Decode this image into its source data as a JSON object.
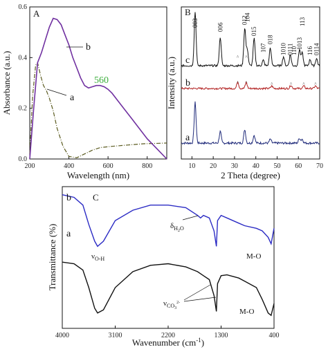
{
  "chart_data": [
    {
      "panel": "A",
      "type": "line",
      "xlabel": "Wavelength (nm)",
      "ylabel": "Absorbance (a.u.)",
      "xlim": [
        200,
        900
      ],
      "ylim": [
        0.0,
        0.6
      ],
      "xticks": [
        200,
        400,
        600,
        800
      ],
      "yticks": [
        0.0,
        0.2,
        0.4,
        0.6
      ],
      "colors": {
        "a": "#5a5a1e",
        "b": "#7030a0",
        "annotation": "#3cae3c"
      },
      "series": [
        {
          "name": "a",
          "style": "dash-dot",
          "x": [
            200,
            215,
            230,
            240,
            255,
            270,
            285,
            300,
            320,
            340,
            370,
            400,
            440,
            480,
            520,
            560,
            620,
            700,
            780,
            860,
            900
          ],
          "y": [
            0.02,
            0.25,
            0.37,
            0.38,
            0.33,
            0.29,
            0.27,
            0.24,
            0.19,
            0.12,
            0.05,
            0.01,
            0.005,
            0.02,
            0.035,
            0.045,
            0.05,
            0.055,
            0.06,
            0.062,
            0.063
          ]
        },
        {
          "name": "b",
          "style": "solid",
          "x": [
            200,
            220,
            240,
            260,
            280,
            300,
            320,
            340,
            360,
            380,
            400,
            420,
            440,
            460,
            480,
            500,
            520,
            540,
            560,
            580,
            600,
            620,
            650,
            680,
            720,
            760,
            800,
            850,
            900
          ],
          "y": [
            0.0,
            0.2,
            0.38,
            0.42,
            0.47,
            0.52,
            0.555,
            0.55,
            0.53,
            0.49,
            0.45,
            0.4,
            0.36,
            0.32,
            0.29,
            0.28,
            0.285,
            0.29,
            0.29,
            0.285,
            0.275,
            0.26,
            0.23,
            0.2,
            0.16,
            0.12,
            0.08,
            0.04,
            0.0
          ]
        }
      ],
      "annotations": [
        {
          "text": "560",
          "x": 560,
          "y": 0.31
        },
        {
          "text": "a",
          "x": 320,
          "y": 0.22
        },
        {
          "text": "b",
          "x": 430,
          "y": 0.48
        }
      ]
    },
    {
      "panel": "B",
      "type": "line",
      "xlabel": "2 Theta (degree)",
      "ylabel": "Intensity (a.u.)",
      "xlim": [
        5,
        70
      ],
      "xticks": [
        10,
        20,
        30,
        40,
        50,
        60,
        70
      ],
      "colors": {
        "a": "#1f2a7a",
        "b": "#b22222",
        "c": "#111111"
      },
      "series": [
        {
          "name": "a",
          "offset": 0,
          "peaks": [
            [
              11.5,
              42
            ],
            [
              23.3,
              12
            ],
            [
              34.8,
              14
            ],
            [
              39.2,
              8
            ],
            [
              46.8,
              4
            ],
            [
              60.5,
              5
            ],
            [
              61.8,
              4
            ]
          ]
        },
        {
          "name": "b",
          "offset": 0,
          "peaks": [
            [
              31.5,
              8
            ],
            [
              35.5,
              7
            ],
            [
              47.5,
              3
            ],
            [
              56.5,
              4
            ],
            [
              62.5,
              3
            ],
            [
              68.0,
              3
            ]
          ]
        },
        {
          "name": "c",
          "offset": 0,
          "peaks": [
            [
              11.5,
              60
            ],
            [
              23.3,
              32
            ],
            [
              34.8,
              42
            ],
            [
              36.0,
              18
            ],
            [
              39.2,
              30
            ],
            [
              43.5,
              6
            ],
            [
              46.8,
              20
            ],
            [
              53.0,
              10
            ],
            [
              56.2,
              12
            ],
            [
              60.5,
              18
            ],
            [
              61.8,
              14
            ],
            [
              65.5,
              7
            ],
            [
              68.5,
              8
            ]
          ]
        }
      ],
      "peak_labels": [
        "003",
        "006",
        "012",
        "104",
        "015",
        "107",
        "018",
        "1010",
        "0111",
        "110",
        "1013",
        "113",
        "116",
        "0114"
      ],
      "series_labels": [
        "a",
        "b",
        "c"
      ]
    },
    {
      "panel": "C",
      "type": "line",
      "xlabel": "Wavenumber (cm⁻¹)",
      "ylabel": "Transmittance (%)",
      "xlim": [
        4000,
        400
      ],
      "xticks": [
        4000,
        3100,
        2200,
        1300,
        400
      ],
      "colors": {
        "a": "#111111",
        "b": "#2b2bc4"
      },
      "series": [
        {
          "name": "a",
          "x": [
            4000,
            3800,
            3650,
            3550,
            3450,
            3400,
            3300,
            3100,
            2800,
            2500,
            2200,
            1900,
            1700,
            1600,
            1500,
            1420,
            1380,
            1360,
            1300,
            1200,
            1000,
            900,
            700,
            600,
            500,
            450,
            400
          ],
          "y": [
            72,
            70,
            62,
            40,
            14,
            8,
            12,
            40,
            60,
            68,
            70,
            66,
            60,
            55,
            50,
            30,
            10,
            45,
            55,
            56,
            52,
            48,
            40,
            25,
            8,
            5,
            20
          ]
        },
        {
          "name": "b",
          "x": [
            4000,
            3800,
            3650,
            3550,
            3450,
            3400,
            3300,
            3100,
            2800,
            2500,
            2200,
            1900,
            1700,
            1650,
            1600,
            1500,
            1420,
            1380,
            1360,
            1300,
            1200,
            1000,
            900,
            700,
            600,
            500,
            450,
            400
          ],
          "y": [
            98,
            96,
            90,
            75,
            62,
            58,
            62,
            78,
            86,
            90,
            90,
            88,
            82,
            80,
            82,
            80,
            70,
            58,
            78,
            82,
            80,
            76,
            74,
            72,
            70,
            65,
            60,
            72
          ]
        }
      ],
      "annotations": [
        {
          "text": "ν O-H",
          "x": 3300,
          "y": 52
        },
        {
          "text": "δ H2O",
          "x": 1600,
          "y": 72
        },
        {
          "text": "ν CO3 2-",
          "x": 2000,
          "y": 28
        },
        {
          "text": "M-O",
          "x": 550,
          "y": 58
        },
        {
          "text": "M-O",
          "x": 650,
          "y": 10
        }
      ]
    }
  ],
  "labels": {
    "panelA": "A",
    "panelB": "B",
    "panelC": "C",
    "a560": "560",
    "A_xlabel": "Wavelength (nm)",
    "A_ylabel": "Absorbance (a.u.)",
    "B_xlabel": "2 Theta (degree)",
    "B_ylabel": "Intensity (a.u.)",
    "C_xlabel": "Wavenumber (cm",
    "C_xlabel_sup": "-1",
    "C_xlabel_end": ")",
    "C_ylabel": "Transmittance (%)",
    "seriesA": "a",
    "seriesB": "b",
    "voh": "ν",
    "voh_sub": "O-H",
    "dh2o": "δ",
    "dh2o_sub": "H",
    "dh2o_sub2": "2",
    "dh2o_sub3": "O",
    "vco3": "ν",
    "vco3_sub": "CO",
    "vco3_sub2": "3",
    "vco3_sup": "2-",
    "mo1": "M-O",
    "mo2": "M-O"
  }
}
